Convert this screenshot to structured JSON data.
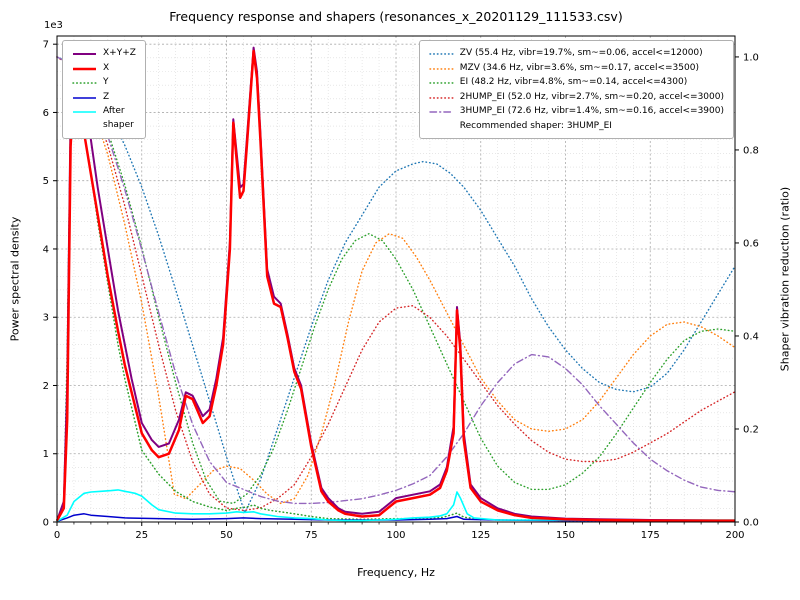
{
  "chart_data": {
    "type": "line",
    "title": "Frequency response and shapers (resonances_x_20201129_111533.csv)",
    "xlabel": "Frequency, Hz",
    "ylabel_left": "Power spectral density",
    "ylabel_right": "Shaper vibration reduction (ratio)",
    "y_left_multiplier": "1e3",
    "xlim": [
      0,
      200
    ],
    "ylim_left": [
      0,
      7
    ],
    "ylim_right": [
      0,
      1
    ],
    "xticks": [
      0,
      25,
      50,
      75,
      100,
      125,
      150,
      175,
      200
    ],
    "yticks_left": [
      0,
      1,
      2,
      3,
      4,
      5,
      6,
      7
    ],
    "yticks_right": [
      0.0,
      0.2,
      0.4,
      0.6,
      0.8,
      1.0
    ],
    "grid": "major+minor",
    "legend_left_order": [
      "X+Y+Z",
      "X",
      "Y",
      "Z",
      "After shaper"
    ],
    "legend_right_order": [
      "ZV",
      "MZV",
      "EI",
      "2HUMP_EI",
      "3HUMP_EI"
    ],
    "recommended_note": "Recommended shaper: 3HUMP_EI",
    "series": [
      {
        "name": "ZV",
        "label": "ZV (55.4 Hz, vibr=19.7%, sm~=0.06, accel<=12000)",
        "axis": "right",
        "color": "#1f77b4",
        "style": "dotted",
        "width": 1.4,
        "x": [
          0,
          5,
          10,
          15,
          20,
          25,
          30,
          35,
          40,
          45,
          50,
          55.4,
          60,
          65,
          70,
          75,
          80,
          85,
          90,
          95,
          100,
          105,
          108,
          112,
          116,
          120,
          125,
          130,
          135,
          140,
          145,
          150,
          155,
          160,
          165,
          170,
          175,
          180,
          185,
          190,
          195,
          200
        ],
        "y": [
          1.0,
          0.985,
          0.945,
          0.885,
          0.81,
          0.72,
          0.615,
          0.5,
          0.38,
          0.26,
          0.14,
          0.02,
          0.09,
          0.2,
          0.31,
          0.42,
          0.52,
          0.6,
          0.66,
          0.72,
          0.755,
          0.77,
          0.775,
          0.77,
          0.75,
          0.72,
          0.67,
          0.61,
          0.55,
          0.48,
          0.42,
          0.37,
          0.33,
          0.3,
          0.285,
          0.28,
          0.29,
          0.32,
          0.37,
          0.43,
          0.49,
          0.55
        ]
      },
      {
        "name": "MZV",
        "label": "MZV (34.6 Hz, vibr=3.6%, sm~=0.17, accel<=3500)",
        "axis": "right",
        "color": "#ff7f0e",
        "style": "dotted",
        "width": 1.4,
        "x": [
          0,
          5,
          10,
          15,
          20,
          25,
          30,
          34.6,
          38,
          42,
          46,
          50,
          54,
          58,
          62,
          66,
          70,
          74,
          78,
          82,
          86,
          90,
          94,
          98,
          102,
          106,
          110,
          115,
          120,
          125,
          130,
          135,
          140,
          145,
          150,
          155,
          160,
          165,
          170,
          175,
          180,
          185,
          190,
          195,
          200
        ],
        "y": [
          1.0,
          0.975,
          0.9,
          0.79,
          0.64,
          0.47,
          0.27,
          0.06,
          0.05,
          0.08,
          0.11,
          0.12,
          0.115,
          0.09,
          0.06,
          0.04,
          0.05,
          0.1,
          0.19,
          0.3,
          0.43,
          0.54,
          0.6,
          0.62,
          0.61,
          0.57,
          0.52,
          0.45,
          0.38,
          0.31,
          0.26,
          0.22,
          0.2,
          0.195,
          0.2,
          0.22,
          0.26,
          0.31,
          0.36,
          0.4,
          0.425,
          0.43,
          0.42,
          0.4,
          0.375
        ]
      },
      {
        "name": "EI",
        "label": "EI (48.2 Hz, vibr=4.8%, sm~=0.14, accel<=4300)",
        "axis": "right",
        "color": "#2ca02c",
        "style": "dotted",
        "width": 1.4,
        "x": [
          0,
          5,
          10,
          15,
          20,
          25,
          30,
          35,
          40,
          44,
          48,
          52,
          56,
          60,
          64,
          68,
          72,
          76,
          80,
          84,
          88,
          92,
          96,
          100,
          105,
          110,
          115,
          120,
          125,
          130,
          135,
          140,
          145,
          150,
          155,
          160,
          165,
          170,
          175,
          180,
          185,
          190,
          195,
          200
        ],
        "y": [
          1.0,
          0.98,
          0.925,
          0.84,
          0.725,
          0.59,
          0.44,
          0.3,
          0.17,
          0.09,
          0.045,
          0.04,
          0.06,
          0.1,
          0.16,
          0.24,
          0.33,
          0.42,
          0.5,
          0.565,
          0.605,
          0.62,
          0.605,
          0.565,
          0.5,
          0.42,
          0.34,
          0.26,
          0.18,
          0.12,
          0.085,
          0.07,
          0.07,
          0.08,
          0.105,
          0.14,
          0.19,
          0.245,
          0.3,
          0.35,
          0.39,
          0.41,
          0.415,
          0.41
        ]
      },
      {
        "name": "2HUMP_EI",
        "label": "2HUMP_EI (52.0 Hz, vibr=2.7%, sm~=0.20, accel<=3000)",
        "axis": "right",
        "color": "#d62728",
        "style": "dotted",
        "width": 1.4,
        "x": [
          0,
          5,
          10,
          15,
          20,
          25,
          30,
          35,
          40,
          45,
          50,
          55,
          60,
          65,
          70,
          75,
          80,
          85,
          90,
          95,
          100,
          105,
          110,
          115,
          120,
          125,
          130,
          135,
          140,
          145,
          150,
          155,
          160,
          165,
          170,
          175,
          180,
          185,
          190,
          195,
          200
        ],
        "y": [
          1.0,
          0.975,
          0.91,
          0.81,
          0.68,
          0.53,
          0.38,
          0.24,
          0.13,
          0.06,
          0.03,
          0.025,
          0.03,
          0.05,
          0.08,
          0.14,
          0.21,
          0.29,
          0.37,
          0.43,
          0.46,
          0.465,
          0.44,
          0.4,
          0.35,
          0.3,
          0.25,
          0.21,
          0.175,
          0.15,
          0.135,
          0.13,
          0.13,
          0.135,
          0.15,
          0.17,
          0.19,
          0.215,
          0.24,
          0.26,
          0.28
        ]
      },
      {
        "name": "3HUMP_EI",
        "label": "3HUMP_EI (72.6 Hz, vibr=1.4%, sm~=0.16, accel<=3900)",
        "axis": "right",
        "color": "#9467bd",
        "style": "dashdot",
        "width": 1.4,
        "x": [
          0,
          5,
          10,
          15,
          20,
          25,
          30,
          35,
          40,
          45,
          50,
          55,
          60,
          65,
          70,
          75,
          80,
          85,
          90,
          95,
          100,
          105,
          110,
          115,
          120,
          125,
          130,
          135,
          140,
          145,
          150,
          155,
          160,
          165,
          170,
          175,
          180,
          185,
          190,
          195,
          200
        ],
        "y": [
          1.0,
          0.98,
          0.92,
          0.83,
          0.715,
          0.585,
          0.45,
          0.32,
          0.21,
          0.13,
          0.085,
          0.07,
          0.055,
          0.045,
          0.04,
          0.04,
          0.042,
          0.046,
          0.05,
          0.058,
          0.068,
          0.082,
          0.1,
          0.14,
          0.19,
          0.25,
          0.3,
          0.34,
          0.36,
          0.355,
          0.33,
          0.295,
          0.25,
          0.21,
          0.17,
          0.135,
          0.11,
          0.09,
          0.075,
          0.068,
          0.065
        ]
      },
      {
        "name": "Y",
        "label": "Y",
        "axis": "left",
        "color": "#2ca02c",
        "style": "dotted",
        "width": 1.5,
        "x": [
          0,
          2,
          3,
          4,
          5,
          6,
          8,
          10,
          12,
          15,
          18,
          20,
          25,
          30,
          35,
          40,
          45,
          50,
          53,
          56,
          58,
          60,
          63,
          66,
          70,
          75,
          80,
          90,
          100,
          110,
          114,
          116,
          118,
          120,
          125,
          130,
          140,
          150,
          175,
          200
        ],
        "y": [
          0.02,
          0.3,
          2.5,
          6.0,
          6.55,
          6.3,
          5.7,
          5.1,
          4.4,
          3.5,
          2.6,
          2.1,
          1.05,
          0.7,
          0.45,
          0.3,
          0.22,
          0.17,
          0.2,
          0.22,
          0.25,
          0.2,
          0.17,
          0.15,
          0.12,
          0.08,
          0.05,
          0.04,
          0.05,
          0.05,
          0.07,
          0.1,
          0.13,
          0.07,
          0.04,
          0.03,
          0.03,
          0.02,
          0.02,
          0.02
        ]
      },
      {
        "name": "Z",
        "label": "Z",
        "axis": "left",
        "color": "#0000cd",
        "style": "solid",
        "width": 1.5,
        "x": [
          0,
          3,
          5,
          8,
          10,
          15,
          20,
          30,
          40,
          50,
          55,
          60,
          70,
          80,
          90,
          100,
          110,
          115,
          118,
          120,
          130,
          150,
          175,
          200
        ],
        "y": [
          0.01,
          0.06,
          0.1,
          0.12,
          0.1,
          0.08,
          0.06,
          0.05,
          0.04,
          0.05,
          0.06,
          0.05,
          0.04,
          0.03,
          0.03,
          0.03,
          0.04,
          0.05,
          0.08,
          0.04,
          0.03,
          0.02,
          0.02,
          0.02
        ]
      },
      {
        "name": "After shaper",
        "label": "After\nshaper",
        "axis": "left",
        "color": "#00ffff",
        "style": "solid",
        "width": 1.6,
        "x": [
          0,
          3,
          5,
          8,
          10,
          13,
          16,
          18,
          20,
          23,
          25,
          28,
          30,
          35,
          40,
          45,
          50,
          53,
          55,
          58,
          60,
          65,
          70,
          75,
          80,
          85,
          90,
          95,
          100,
          105,
          110,
          113,
          115,
          117,
          118,
          119,
          121,
          123,
          125,
          130,
          140,
          150,
          175,
          200
        ],
        "y": [
          0.01,
          0.1,
          0.3,
          0.42,
          0.44,
          0.45,
          0.46,
          0.47,
          0.45,
          0.42,
          0.38,
          0.25,
          0.18,
          0.13,
          0.12,
          0.12,
          0.13,
          0.15,
          0.14,
          0.15,
          0.12,
          0.08,
          0.06,
          0.05,
          0.03,
          0.02,
          0.02,
          0.03,
          0.04,
          0.06,
          0.07,
          0.09,
          0.12,
          0.25,
          0.44,
          0.35,
          0.12,
          0.06,
          0.05,
          0.03,
          0.03,
          0.03,
          0.03,
          0.03
        ]
      },
      {
        "name": "X+Y+Z",
        "label": "X+Y+Z",
        "axis": "left",
        "color": "#800080",
        "style": "solid",
        "width": 2,
        "x": [
          0,
          2,
          3,
          4,
          5,
          6,
          8,
          10,
          12,
          15,
          18,
          20,
          22,
          25,
          28,
          30,
          33,
          36,
          38,
          40,
          43,
          45,
          47,
          49,
          51,
          52,
          54,
          55,
          56,
          58,
          59,
          60,
          62,
          64,
          66,
          68,
          70,
          72,
          75,
          78,
          80,
          83,
          85,
          90,
          95,
          100,
          105,
          110,
          113,
          115,
          117,
          118,
          119,
          120,
          122,
          125,
          130,
          135,
          140,
          150,
          160,
          175,
          200
        ],
        "y": [
          0.02,
          0.3,
          2.0,
          6.0,
          6.95,
          6.8,
          6.2,
          5.6,
          4.9,
          4.0,
          3.1,
          2.6,
          2.1,
          1.45,
          1.2,
          1.1,
          1.15,
          1.5,
          1.9,
          1.85,
          1.55,
          1.65,
          2.1,
          2.7,
          4.1,
          5.9,
          4.9,
          4.95,
          5.6,
          6.95,
          6.6,
          5.7,
          3.7,
          3.3,
          3.2,
          2.75,
          2.25,
          2.0,
          1.15,
          0.5,
          0.35,
          0.2,
          0.15,
          0.12,
          0.15,
          0.35,
          0.4,
          0.45,
          0.55,
          0.8,
          1.4,
          3.15,
          2.6,
          1.3,
          0.55,
          0.35,
          0.2,
          0.12,
          0.08,
          0.05,
          0.04,
          0.03,
          0.02
        ]
      },
      {
        "name": "X",
        "label": "X",
        "axis": "left",
        "color": "#ff0000",
        "style": "solid",
        "width": 2.5,
        "x": [
          0,
          2,
          3,
          4,
          5,
          6,
          8,
          10,
          12,
          15,
          18,
          20,
          22,
          25,
          28,
          30,
          33,
          36,
          38,
          40,
          43,
          45,
          47,
          49,
          51,
          52,
          54,
          55,
          56,
          58,
          59,
          60,
          62,
          64,
          66,
          68,
          70,
          72,
          75,
          78,
          80,
          83,
          85,
          90,
          95,
          100,
          105,
          110,
          113,
          115,
          117,
          118,
          119,
          120,
          122,
          125,
          130,
          135,
          140,
          150,
          160,
          175,
          200
        ],
        "y": [
          0.02,
          0.2,
          1.5,
          5.5,
          6.45,
          6.3,
          5.7,
          5.1,
          4.5,
          3.6,
          2.8,
          2.3,
          1.9,
          1.3,
          1.05,
          0.95,
          1.0,
          1.35,
          1.85,
          1.8,
          1.45,
          1.55,
          2.0,
          2.6,
          4.0,
          5.85,
          4.75,
          4.85,
          5.5,
          6.9,
          6.5,
          5.6,
          3.6,
          3.2,
          3.15,
          2.7,
          2.2,
          1.95,
          1.1,
          0.45,
          0.3,
          0.17,
          0.12,
          0.08,
          0.1,
          0.3,
          0.35,
          0.4,
          0.5,
          0.75,
          1.3,
          3.1,
          2.5,
          1.2,
          0.5,
          0.3,
          0.17,
          0.1,
          0.06,
          0.04,
          0.03,
          0.02,
          0.02
        ]
      }
    ]
  }
}
